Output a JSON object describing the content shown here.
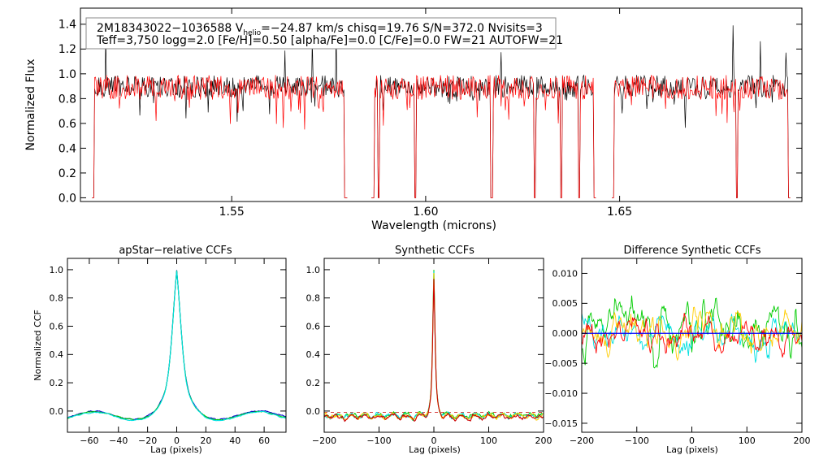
{
  "chart_data": [
    {
      "type": "line",
      "id": "spectrum",
      "xlabel": "Wavelength (microns)",
      "ylabel": "Normalized Flux",
      "xlim": [
        1.511,
        1.697
      ],
      "ylim": [
        -0.03,
        1.53
      ],
      "xticks": [
        1.55,
        1.6,
        1.65
      ],
      "xtick_labels": [
        "1.55",
        "1.60",
        "1.65"
      ],
      "yticks": [
        0.0,
        0.2,
        0.4,
        0.6,
        0.8,
        1.0,
        1.2,
        1.4
      ],
      "ytick_labels": [
        "0.0",
        "0.2",
        "0.4",
        "0.6",
        "0.8",
        "1.0",
        "1.2",
        "1.4"
      ],
      "annotation": {
        "line1_pre": "2M18343022−1036588  V",
        "line1_sub": "helio",
        "line1_post": "=−24.87 km/s  chisq=19.76  S/N=372.0  Nvisits=3",
        "line2": "Teff=3,750 logg=2.0 [Fe/H]=0.50 [alpha/Fe]=0.0 [C/Fe]=0.0 FW=21 AUTOFW=21"
      },
      "detector_chips": [
        [
          1.514,
          1.58
        ],
        [
          1.586,
          1.644
        ],
        [
          1.648,
          1.694
        ]
      ],
      "deep_lines": [
        1.5142,
        1.5793,
        1.5866,
        1.5879,
        1.5973,
        1.617,
        1.6281,
        1.635,
        1.6395,
        1.6483,
        1.6802
      ],
      "series": [
        {
          "color": "#000000",
          "mean": 0.9,
          "noise": 0.09
        },
        {
          "color": "#ff0000",
          "mean": 0.89,
          "noise": 0.1
        }
      ]
    },
    {
      "type": "line",
      "id": "apstar-ccf",
      "title": "apStar−relative CCFs",
      "xlabel": "Lag (pixels)",
      "ylabel": "Normalized CCF",
      "xlim": [
        -75,
        75
      ],
      "ylim": [
        -0.15,
        1.08
      ],
      "xticks": [
        -60,
        -40,
        -20,
        0,
        20,
        40,
        60
      ],
      "yticks": [
        0.0,
        0.2,
        0.4,
        0.6,
        0.8,
        1.0
      ],
      "ytick_labels": [
        "0.0",
        "0.2",
        "0.4",
        "0.6",
        "0.8",
        "1.0"
      ],
      "series": [
        {
          "color": "#0000cc",
          "peak": 0.99
        },
        {
          "color": "#00cc00",
          "peak": 0.99
        },
        {
          "color": "#00e0e0",
          "peak": 0.99
        }
      ]
    },
    {
      "type": "line",
      "id": "synthetic-ccf",
      "title": "Synthetic CCFs",
      "xlabel": "Lag (pixels)",
      "xlim": [
        -200,
        200
      ],
      "ylim": [
        -0.15,
        1.08
      ],
      "xticks": [
        -200,
        -100,
        0,
        100,
        200
      ],
      "yticks": [
        0.0,
        0.2,
        0.4,
        0.6,
        0.8,
        1.0
      ],
      "ytick_labels": [
        "0.0",
        "0.2",
        "0.4",
        "0.6",
        "0.8",
        "1.0"
      ],
      "series": [
        {
          "color": "#00cc00",
          "peak": 1.0
        },
        {
          "color": "#00e0e0",
          "peak": 0.99
        },
        {
          "color": "#ffcc00",
          "peak": 0.98
        },
        {
          "color": "#cc0000",
          "peak": 0.97
        }
      ]
    },
    {
      "type": "line",
      "id": "difference-ccf",
      "title": "Difference Synthetic CCFs",
      "xlabel": "Lag (pixels)",
      "xlim": [
        -200,
        200
      ],
      "ylim": [
        -0.0165,
        0.0125
      ],
      "xticks": [
        -200,
        -100,
        0,
        100,
        200
      ],
      "yticks": [
        -0.015,
        -0.01,
        -0.005,
        0.0,
        0.005,
        0.01
      ],
      "ytick_labels": [
        "−0.015",
        "−0.010",
        "−0.005",
        "0.000",
        "0.005",
        "0.010"
      ],
      "zero_line_color": "#0000ff",
      "series": [
        {
          "color": "#00cc00",
          "amp": 0.008
        },
        {
          "color": "#00e0e0",
          "amp": 0.005
        },
        {
          "color": "#ffcc00",
          "amp": 0.006
        },
        {
          "color": "#ff0000",
          "amp": 0.005
        }
      ]
    }
  ]
}
